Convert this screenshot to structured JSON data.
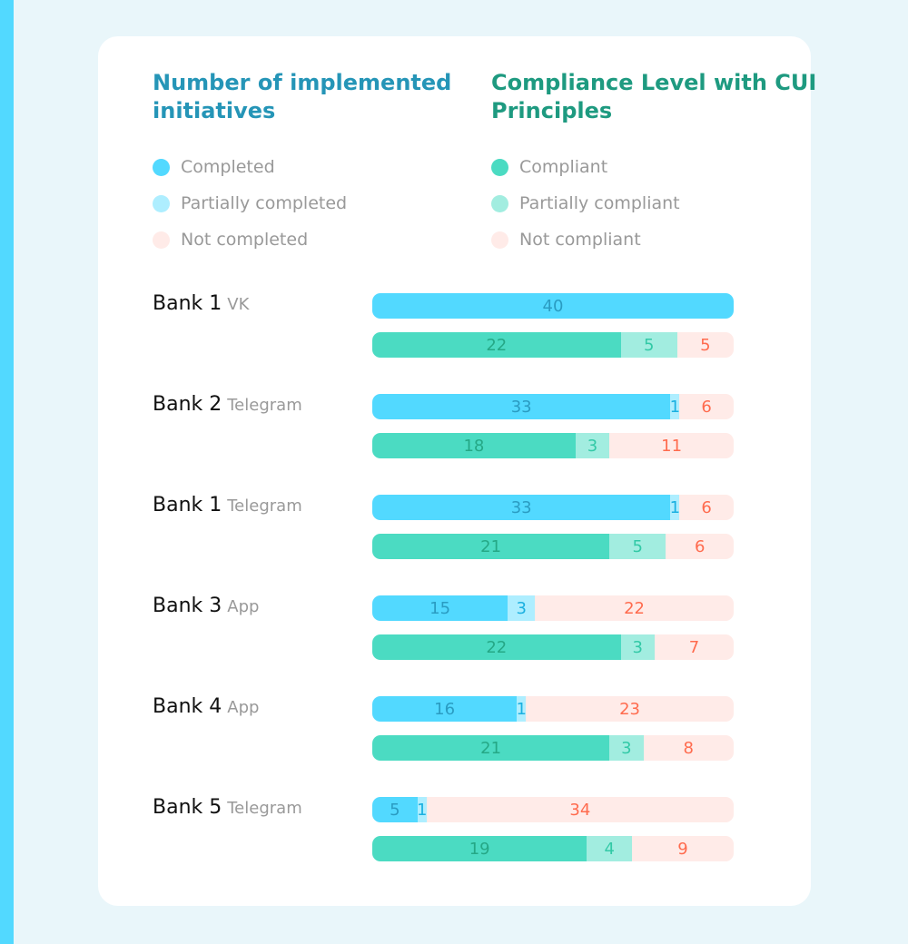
{
  "colors": {
    "completed": "#52d9ff",
    "partially_completed": "#aeeeff",
    "not_completed": "#ffebe8",
    "compliant": "#4bdbc2",
    "partially_compliant": "#a2ede0",
    "not_compliant": "#ffebe8",
    "completed_text": "#2a9cc2",
    "partial_text": "#1bb0e0",
    "not_text": "#ff6b4e",
    "compliant_text": "#25a886",
    "partial_compliant_text": "#32c9a6"
  },
  "chart_data": {
    "type": "bar",
    "stacked": true,
    "titles": [
      "Number of implemented initiatives",
      "Compliance Level with CUI Principles"
    ],
    "legends": [
      [
        "Completed",
        "Partially completed",
        "Not completed"
      ],
      [
        "Compliant",
        "Partially compliant",
        "Not compliant"
      ]
    ],
    "groups": [
      {
        "bank": "Bank 1",
        "channel": "VK",
        "initiatives": [
          40,
          0,
          0
        ],
        "compliance": [
          22,
          5,
          5
        ]
      },
      {
        "bank": "Bank 2",
        "channel": "Telegram",
        "initiatives": [
          33,
          1,
          6
        ],
        "compliance": [
          18,
          3,
          11
        ]
      },
      {
        "bank": "Bank 1",
        "channel": "Telegram",
        "initiatives": [
          33,
          1,
          6
        ],
        "compliance": [
          21,
          5,
          6
        ]
      },
      {
        "bank": "Bank 3",
        "channel": "App",
        "initiatives": [
          15,
          3,
          22
        ],
        "compliance": [
          22,
          3,
          7
        ]
      },
      {
        "bank": "Bank 4",
        "channel": "App",
        "initiatives": [
          16,
          1,
          23
        ],
        "compliance": [
          21,
          3,
          8
        ]
      },
      {
        "bank": "Bank 5",
        "channel": "Telegram",
        "initiatives": [
          5,
          1,
          34
        ],
        "compliance": [
          19,
          4,
          9
        ]
      }
    ]
  }
}
